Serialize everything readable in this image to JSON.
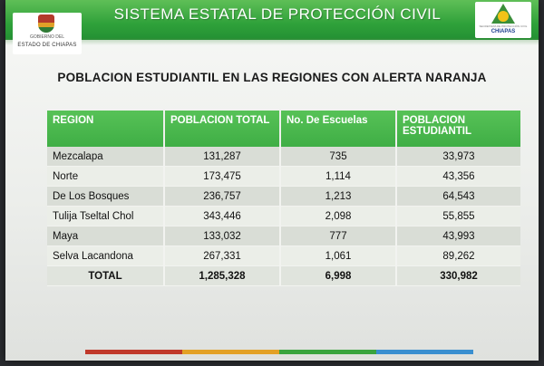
{
  "header": {
    "title": "SISTEMA ESTATAL DE  PROTECCIÓN CIVIL",
    "left_logo": {
      "line1": "GOBIERNO DEL",
      "line2": "ESTADO DE CHIAPAS"
    },
    "right_logo": {
      "line1": "SECRETARÍA DE PROTECCIÓN CIVIL",
      "line2": "CHIAPAS"
    }
  },
  "main_title": "POBLACION ESTUDIANTIL EN LAS REGIONES CON ALERTA NARANJA",
  "table": {
    "headers": [
      "REGION",
      "POBLACION TOTAL",
      "No. De Escuelas",
      "POBLACION ESTUDIANTIL"
    ],
    "rows": [
      [
        "Mezcalapa",
        "131,287",
        "735",
        "33,973"
      ],
      [
        "Norte",
        "173,475",
        "1,114",
        "43,356"
      ],
      [
        "De Los Bosques",
        "236,757",
        "1,213",
        "64,543"
      ],
      [
        "Tulija Tseltal Chol",
        "343,446",
        "2,098",
        "55,855"
      ],
      [
        "Maya",
        "133,032",
        "777",
        "43,993"
      ],
      [
        "Selva Lacandona",
        "267,331",
        "1,061",
        "89,262"
      ]
    ],
    "total": [
      "TOTAL",
      "1,285,328",
      "6,998",
      "330,982"
    ]
  },
  "colors": {
    "header_green": "#2fa13a",
    "table_header_green": "#4cb84f",
    "bar": [
      "#c0392b",
      "#e3a126",
      "#3aa43e",
      "#3a8fd0"
    ]
  }
}
